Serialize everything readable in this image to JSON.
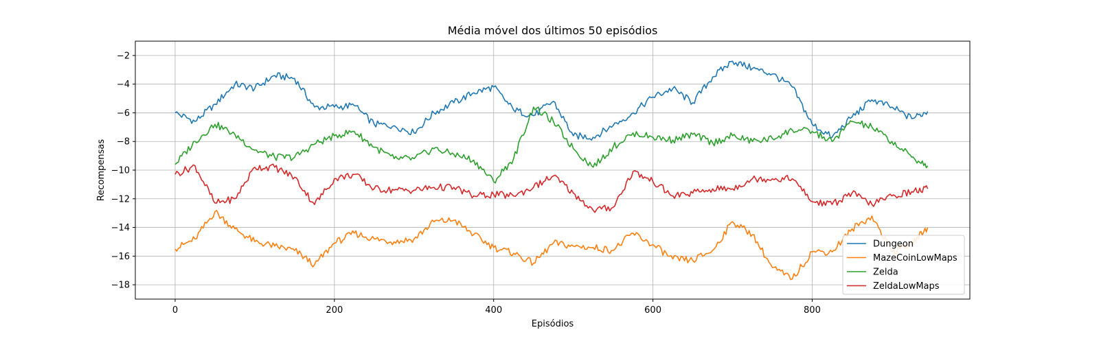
{
  "chart_data": {
    "type": "line",
    "title": "Média móvel dos últimos 50 episódios",
    "xlabel": "Episódios",
    "ylabel": "Recompensas",
    "xlim": [
      -50,
      998
    ],
    "ylim": [
      -19,
      -1
    ],
    "xticks": [
      0,
      200,
      400,
      600,
      800
    ],
    "yticks": [
      -18,
      -16,
      -14,
      -12,
      -10,
      -8,
      -6,
      -4,
      -2
    ],
    "grid": true,
    "legend_position": "lower right",
    "series": [
      {
        "name": "Dungeon",
        "color": "#1f77b4",
        "x": [
          0,
          25,
          50,
          75,
          100,
          125,
          150,
          175,
          200,
          225,
          250,
          275,
          300,
          325,
          350,
          375,
          400,
          425,
          450,
          475,
          500,
          525,
          550,
          575,
          600,
          625,
          650,
          675,
          700,
          725,
          750,
          775,
          800,
          825,
          850,
          875,
          900,
          925,
          945
        ],
        "y": [
          -6.0,
          -6.6,
          -5.4,
          -4.0,
          -4.3,
          -3.4,
          -3.6,
          -5.6,
          -5.6,
          -5.5,
          -6.8,
          -6.9,
          -7.4,
          -6.0,
          -5.3,
          -4.6,
          -4.2,
          -5.8,
          -6.2,
          -5.2,
          -7.6,
          -7.7,
          -6.9,
          -6.0,
          -4.9,
          -4.3,
          -5.3,
          -3.5,
          -2.4,
          -2.9,
          -3.3,
          -4.2,
          -6.8,
          -7.7,
          -6.3,
          -5.1,
          -5.6,
          -6.4,
          -5.9
        ]
      },
      {
        "name": "MazeCoinLowMaps",
        "color": "#ff7f0e",
        "x": [
          0,
          25,
          50,
          75,
          100,
          125,
          150,
          175,
          200,
          225,
          250,
          275,
          300,
          325,
          350,
          375,
          400,
          425,
          450,
          475,
          500,
          525,
          550,
          575,
          600,
          625,
          650,
          675,
          700,
          725,
          750,
          775,
          800,
          825,
          850,
          875,
          900,
          925,
          945
        ],
        "y": [
          -15.5,
          -14.8,
          -12.9,
          -14.1,
          -15.0,
          -15.3,
          -15.6,
          -16.6,
          -15.1,
          -14.4,
          -14.8,
          -15.0,
          -14.8,
          -13.6,
          -13.5,
          -14.5,
          -15.4,
          -15.8,
          -16.5,
          -15.1,
          -15.3,
          -15.4,
          -15.6,
          -14.4,
          -15.2,
          -16.2,
          -16.3,
          -15.6,
          -13.6,
          -14.5,
          -16.8,
          -17.6,
          -15.7,
          -15.7,
          -14.1,
          -13.2,
          -15.7,
          -15.1,
          -14.0
        ]
      },
      {
        "name": "Zelda",
        "color": "#2ca02c",
        "x": [
          0,
          25,
          50,
          75,
          100,
          125,
          150,
          175,
          200,
          225,
          250,
          275,
          300,
          325,
          350,
          375,
          400,
          425,
          450,
          475,
          500,
          525,
          550,
          575,
          600,
          625,
          650,
          675,
          700,
          725,
          750,
          775,
          800,
          825,
          850,
          875,
          900,
          925,
          945
        ],
        "y": [
          -9.6,
          -8.0,
          -6.8,
          -7.5,
          -8.6,
          -9.1,
          -9.1,
          -8.2,
          -7.6,
          -7.3,
          -8.4,
          -9.2,
          -9.2,
          -8.5,
          -8.9,
          -9.3,
          -10.8,
          -9.2,
          -5.6,
          -6.6,
          -8.5,
          -9.8,
          -8.4,
          -7.4,
          -7.7,
          -7.9,
          -7.5,
          -8.1,
          -7.6,
          -8.0,
          -7.8,
          -7.2,
          -7.3,
          -8.0,
          -6.6,
          -7.0,
          -8.0,
          -9.1,
          -9.7
        ]
      },
      {
        "name": "ZeldaLowMaps",
        "color": "#d62728",
        "x": [
          0,
          25,
          50,
          75,
          100,
          125,
          150,
          175,
          200,
          225,
          250,
          275,
          300,
          325,
          350,
          375,
          400,
          425,
          450,
          475,
          500,
          525,
          550,
          575,
          600,
          625,
          650,
          675,
          700,
          725,
          750,
          775,
          800,
          825,
          850,
          875,
          900,
          925,
          945
        ],
        "y": [
          -10.3,
          -9.7,
          -12.3,
          -12.0,
          -9.8,
          -9.8,
          -10.5,
          -12.4,
          -10.6,
          -10.3,
          -11.3,
          -11.4,
          -11.4,
          -11.2,
          -11.2,
          -11.8,
          -11.7,
          -11.8,
          -11.2,
          -10.4,
          -11.6,
          -12.8,
          -12.6,
          -10.1,
          -10.8,
          -11.8,
          -11.6,
          -11.3,
          -11.3,
          -10.6,
          -10.6,
          -10.6,
          -12.2,
          -12.4,
          -11.6,
          -12.4,
          -11.8,
          -11.5,
          -11.3
        ]
      }
    ]
  }
}
